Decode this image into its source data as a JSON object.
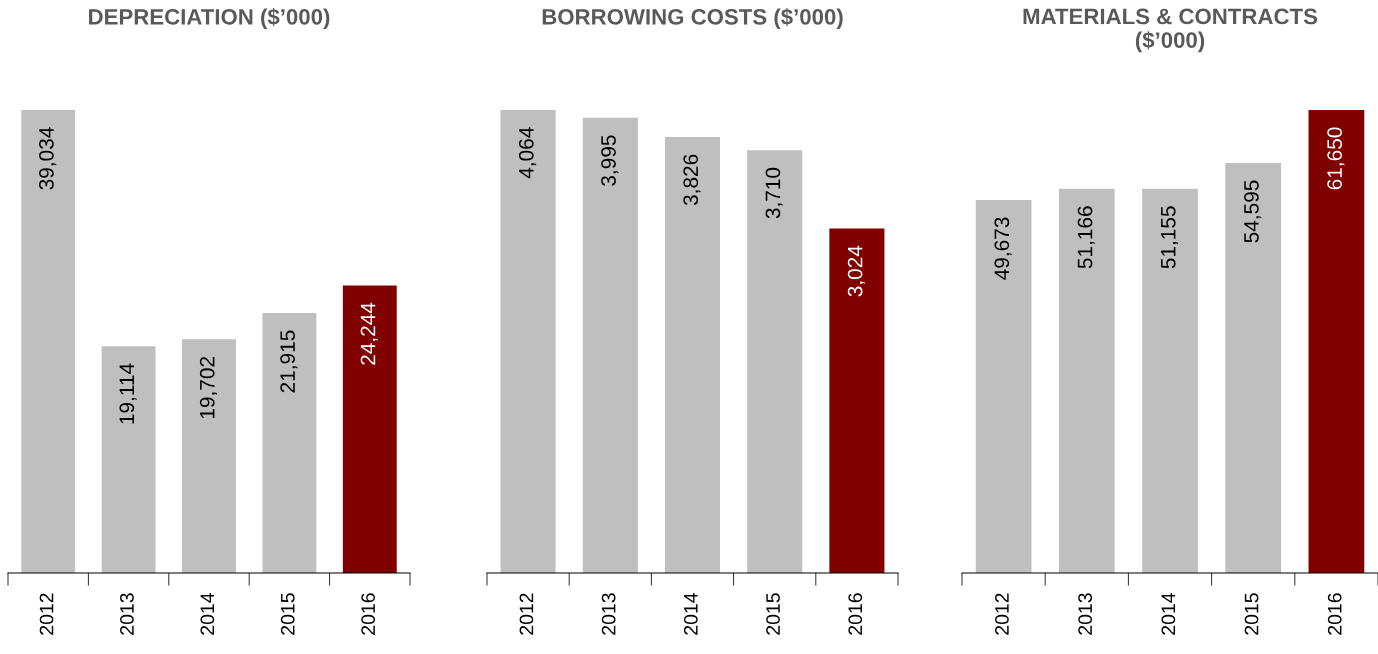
{
  "chart_data": [
    {
      "type": "bar",
      "title": "DEPRECIATION ($’000)",
      "categories": [
        "2012",
        "2013",
        "2014",
        "2015",
        "2016"
      ],
      "values": [
        39034,
        19114,
        19702,
        21915,
        24244
      ],
      "value_labels": [
        "39,034",
        "19,114",
        "19,702",
        "21,915",
        "24,244"
      ],
      "colors": [
        "#bfbfbf",
        "#bfbfbf",
        "#bfbfbf",
        "#bfbfbf",
        "#800000"
      ],
      "grid": false,
      "legend": false
    },
    {
      "type": "bar",
      "title": "BORROWING COSTS ($’000)",
      "categories": [
        "2012",
        "2013",
        "2014",
        "2015",
        "2016"
      ],
      "values": [
        4064,
        3995,
        3826,
        3710,
        3024
      ],
      "value_labels": [
        "4,064",
        "3,995",
        "3,826",
        "3,710",
        "3,024"
      ],
      "colors": [
        "#bfbfbf",
        "#bfbfbf",
        "#bfbfbf",
        "#bfbfbf",
        "#800000"
      ],
      "grid": false,
      "legend": false
    },
    {
      "type": "bar",
      "title": "MATERIALS & CONTRACTS\n($’000)",
      "categories": [
        "2012",
        "2013",
        "2014",
        "2015",
        "2016"
      ],
      "values": [
        49673,
        51166,
        51155,
        54595,
        61650
      ],
      "value_labels": [
        "49,673",
        "51,166",
        "51,155",
        "54,595",
        "61,650"
      ],
      "colors": [
        "#bfbfbf",
        "#bfbfbf",
        "#bfbfbf",
        "#bfbfbf",
        "#800000"
      ],
      "grid": false,
      "legend": false
    }
  ]
}
